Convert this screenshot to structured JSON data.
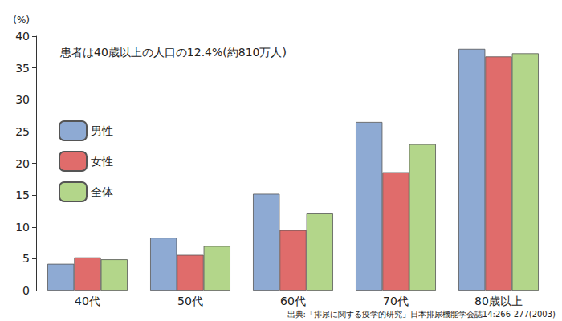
{
  "chart_data": {
    "type": "bar",
    "y_label": "(%)",
    "annotation": "患者は40歳以上の人口の12.4%(約810万人)",
    "source": "出典:「排尿に関する疫学的研究」日本排尿機能学会誌14:266-277(2003)",
    "categories": [
      "40代",
      "50代",
      "60代",
      "70代",
      "80歳以上"
    ],
    "series": [
      {
        "name": "男性",
        "color": "#8eaad3",
        "values": [
          4.2,
          8.3,
          15.2,
          26.5,
          38.0
        ]
      },
      {
        "name": "女性",
        "color": "#e06c6b",
        "values": [
          5.2,
          5.6,
          9.5,
          18.6,
          36.8
        ]
      },
      {
        "name": "全体",
        "color": "#b3d68a",
        "values": [
          4.9,
          7.0,
          12.1,
          23.0,
          37.3
        ]
      }
    ],
    "ylim": [
      0,
      40
    ],
    "yticks": [
      0,
      5,
      10,
      15,
      20,
      25,
      30,
      35,
      40
    ],
    "grid": false,
    "legend": "left"
  }
}
